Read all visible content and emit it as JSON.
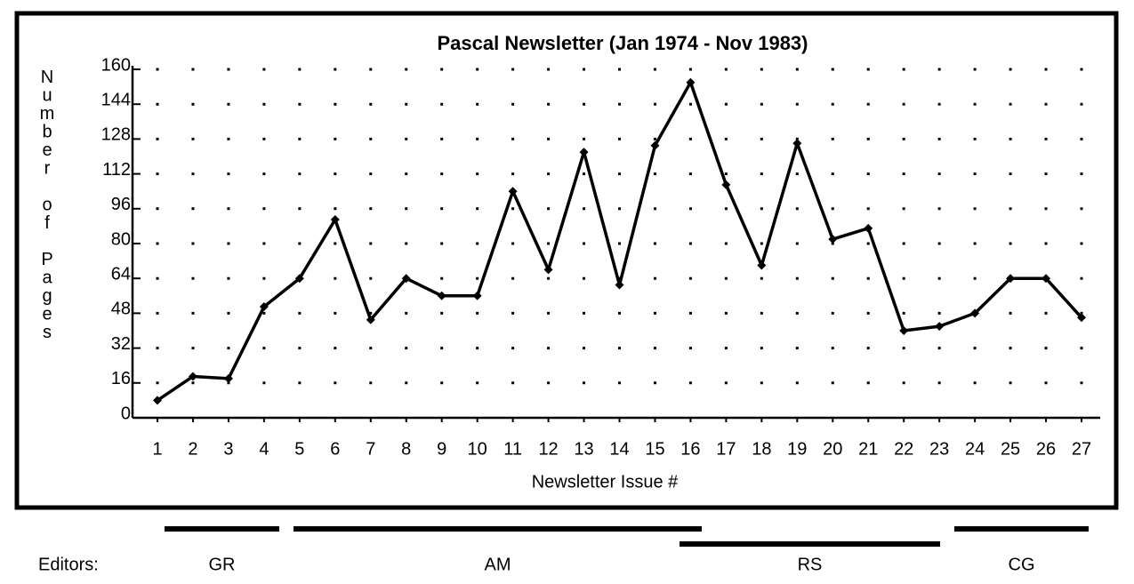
{
  "chart_data": {
    "type": "line",
    "title": "Pascal Newsletter (Jan 1974 - Nov 1983)",
    "x_label": "Newsletter Issue #",
    "y_label": "Number of Pages",
    "categories": [
      "1",
      "2",
      "3",
      "4",
      "5",
      "6",
      "7",
      "8",
      "9",
      "10",
      "11",
      "12",
      "13",
      "14",
      "15",
      "16",
      "17",
      "18",
      "19",
      "20",
      "21",
      "22",
      "23",
      "24",
      "25",
      "26",
      "27"
    ],
    "values": [
      8,
      19,
      18,
      51,
      64,
      91,
      45,
      64,
      56,
      56,
      104,
      68,
      122,
      61,
      125,
      154,
      107,
      70,
      126,
      82,
      87,
      40,
      42,
      48,
      64,
      64,
      46
    ],
    "color": "#000000",
    "ylim": [
      0,
      160
    ],
    "yticks": [
      0,
      16,
      32,
      48,
      64,
      80,
      96,
      112,
      128,
      144,
      160
    ],
    "grid": "dotted",
    "editors_label": "Editors:",
    "editors": [
      "GR",
      "AM",
      "RS",
      "CG"
    ]
  }
}
